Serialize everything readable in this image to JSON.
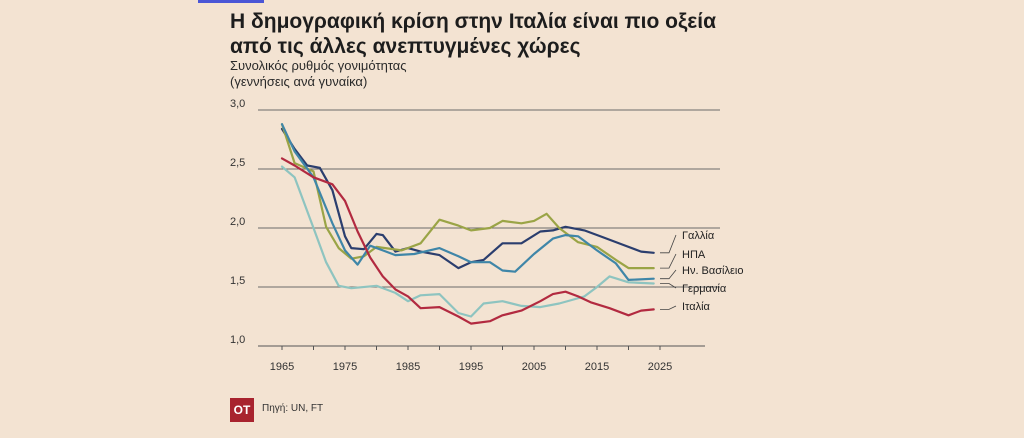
{
  "title_line1": "Η δημογραφική κρίση στην Ιταλία είναι πιο οξεία",
  "title_line2": "από τις άλλες ανεπτυγμένες χώρες",
  "subtitle_line1": "Συνολικός ρυθμός γονιμότητας",
  "subtitle_line2": "(γεννήσεις ανά γυναίκα)",
  "logo_text": "ΟΤ",
  "source": "Πηγή: UN, FT",
  "chart_data": {
    "type": "line",
    "ylim": [
      1.0,
      3.0
    ],
    "xlim": [
      1960,
      2030
    ],
    "yticks": [
      "1,0",
      "1,5",
      "2,0",
      "2,5",
      "3,0"
    ],
    "xticks": [
      "1965",
      "1975",
      "1985",
      "1995",
      "2005",
      "2015",
      "2025"
    ],
    "grid": true,
    "legend": "right-of-lines",
    "series": [
      {
        "name": "Γαλλία",
        "color": "#2b3e6e",
        "x": [
          1965,
          1967,
          1969,
          1971,
          1973,
          1975,
          1976,
          1978,
          1980,
          1981,
          1983,
          1985,
          1987,
          1990,
          1993,
          1995,
          1997,
          2000,
          2003,
          2006,
          2008,
          2010,
          2013,
          2016,
          2019,
          2022,
          2024
        ],
        "y": [
          2.84,
          2.67,
          2.53,
          2.51,
          2.32,
          1.93,
          1.83,
          1.82,
          1.95,
          1.94,
          1.8,
          1.83,
          1.8,
          1.77,
          1.66,
          1.71,
          1.73,
          1.87,
          1.87,
          1.97,
          1.98,
          2.01,
          1.98,
          1.92,
          1.86,
          1.8,
          1.79
        ]
      },
      {
        "name": "ΗΠΑ",
        "color": "#9aa446",
        "x": [
          1965,
          1967,
          1970,
          1972,
          1974,
          1976,
          1978,
          1980,
          1984,
          1987,
          1990,
          1993,
          1995,
          1998,
          2000,
          2003,
          2005,
          2007,
          2009,
          2012,
          2015,
          2018,
          2020,
          2024
        ],
        "y": [
          2.88,
          2.55,
          2.48,
          2.01,
          1.83,
          1.74,
          1.76,
          1.84,
          1.81,
          1.87,
          2.07,
          2.02,
          1.98,
          2.0,
          2.06,
          2.04,
          2.06,
          2.12,
          2.0,
          1.88,
          1.84,
          1.73,
          1.66,
          1.66
        ]
      },
      {
        "name": "Ην. Βασίλειο",
        "color": "#3f86a8",
        "x": [
          1965,
          1967,
          1970,
          1973,
          1975,
          1977,
          1979,
          1981,
          1983,
          1986,
          1990,
          1993,
          1995,
          1998,
          2000,
          2002,
          2005,
          2008,
          2010,
          2012,
          2015,
          2018,
          2020,
          2024
        ],
        "y": [
          2.88,
          2.65,
          2.43,
          2.04,
          1.81,
          1.69,
          1.85,
          1.81,
          1.77,
          1.78,
          1.83,
          1.76,
          1.71,
          1.71,
          1.64,
          1.63,
          1.78,
          1.91,
          1.94,
          1.93,
          1.81,
          1.7,
          1.56,
          1.57
        ]
      },
      {
        "name": "Γερμανία",
        "color": "#8ec4c0",
        "x": [
          1965,
          1967,
          1970,
          1972,
          1974,
          1976,
          1980,
          1983,
          1985,
          1987,
          1990,
          1993,
          1995,
          1997,
          2000,
          2003,
          2006,
          2009,
          2011,
          2013,
          2015,
          2017,
          2020,
          2024
        ],
        "y": [
          2.52,
          2.43,
          2.0,
          1.71,
          1.51,
          1.49,
          1.51,
          1.45,
          1.38,
          1.43,
          1.44,
          1.28,
          1.25,
          1.36,
          1.38,
          1.34,
          1.33,
          1.36,
          1.39,
          1.42,
          1.5,
          1.59,
          1.54,
          1.53
        ]
      },
      {
        "name": "Ιταλία",
        "color": "#b22a40",
        "x": [
          1965,
          1967,
          1970,
          1973,
          1975,
          1977,
          1979,
          1981,
          1983,
          1985,
          1987,
          1990,
          1993,
          1995,
          1998,
          2000,
          2003,
          2006,
          2008,
          2010,
          2012,
          2014,
          2017,
          2020,
          2022,
          2024
        ],
        "y": [
          2.59,
          2.53,
          2.43,
          2.37,
          2.23,
          1.97,
          1.75,
          1.59,
          1.48,
          1.42,
          1.32,
          1.33,
          1.25,
          1.19,
          1.21,
          1.26,
          1.3,
          1.38,
          1.44,
          1.46,
          1.42,
          1.37,
          1.32,
          1.26,
          1.3,
          1.31
        ]
      }
    ]
  }
}
